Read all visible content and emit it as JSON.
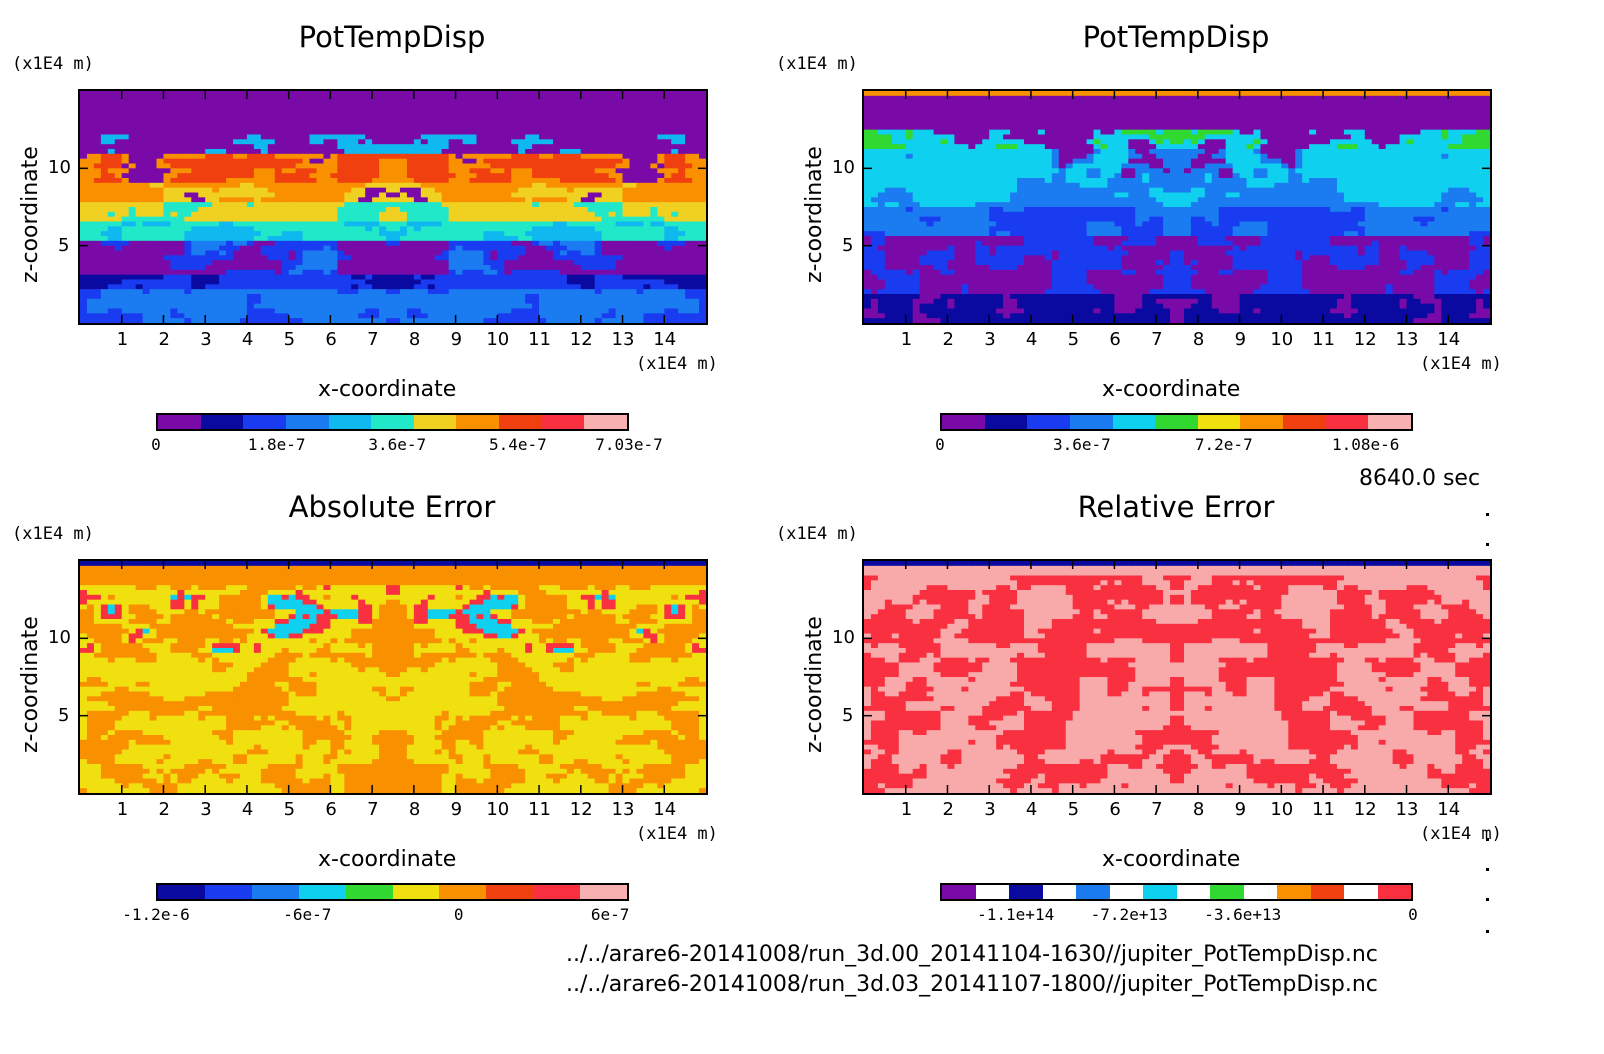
{
  "chart_data": [
    {
      "type": "heatmap",
      "title": "PotTempDisp",
      "xlabel": "x-coordinate",
      "ylabel": "z-coordinate",
      "x_unit": "(x1E4 m)",
      "y_unit": "(x1E4 m)",
      "x_ticks": [
        "1",
        "2",
        "3",
        "4",
        "5",
        "6",
        "7",
        "8",
        "9",
        "10",
        "11",
        "12",
        "13",
        "14"
      ],
      "y_ticks": [
        "5",
        "10"
      ],
      "colorbar": {
        "labels": [
          "0",
          "1.8e-7",
          "3.6e-7",
          "5.4e-7",
          "7.03e-7"
        ],
        "colors": [
          "#7a0aa8",
          "#0a0aa0",
          "#1a3cf0",
          "#1a7cf0",
          "#10b8f0",
          "#20e8c8",
          "#f0d020",
          "#f89000",
          "#f04010",
          "#f83040",
          "#f8b0b0"
        ]
      }
    },
    {
      "type": "heatmap",
      "title": "PotTempDisp",
      "xlabel": "x-coordinate",
      "ylabel": "z-coordinate",
      "x_unit": "(x1E4 m)",
      "y_unit": "(x1E4 m)",
      "x_ticks": [
        "1",
        "2",
        "3",
        "4",
        "5",
        "6",
        "7",
        "8",
        "9",
        "10",
        "11",
        "12",
        "13",
        "14"
      ],
      "y_ticks": [
        "5",
        "10"
      ],
      "colorbar": {
        "labels": [
          "0",
          "3.6e-7",
          "7.2e-7",
          "1.08e-6"
        ],
        "colors": [
          "#7a0aa8",
          "#0a0aa0",
          "#1a3cf0",
          "#1a7cf0",
          "#10d0f0",
          "#30d830",
          "#f0e010",
          "#f89000",
          "#f04010",
          "#f83040",
          "#f8b0b0"
        ]
      }
    },
    {
      "type": "heatmap",
      "title": "Absolute Error",
      "xlabel": "x-coordinate",
      "ylabel": "z-coordinate",
      "x_unit": "(x1E4 m)",
      "y_unit": "(x1E4 m)",
      "x_ticks": [
        "1",
        "2",
        "3",
        "4",
        "5",
        "6",
        "7",
        "8",
        "9",
        "10",
        "11",
        "12",
        "13",
        "14"
      ],
      "y_ticks": [
        "5",
        "10"
      ],
      "colorbar": {
        "labels": [
          "-1.2e-6",
          "-6e-7",
          "0",
          "6e-7"
        ],
        "colors": [
          "#0a0aa0",
          "#1a3cf0",
          "#1a7cf0",
          "#10d0f0",
          "#30d830",
          "#f0e010",
          "#f89000",
          "#f04010",
          "#f83040",
          "#f8b0b0"
        ]
      }
    },
    {
      "type": "heatmap",
      "title": "Relative Error",
      "xlabel": "x-coordinate",
      "ylabel": "z-coordinate",
      "x_unit": "(x1E4 m)",
      "y_unit": "(x1E4 m)",
      "x_ticks": [
        "1",
        "2",
        "3",
        "4",
        "5",
        "6",
        "7",
        "8",
        "9",
        "10",
        "11",
        "12",
        "13",
        "14"
      ],
      "y_ticks": [
        "5",
        "10"
      ],
      "colorbar": {
        "labels": [
          "-1.1e+14",
          "-7.2e+13",
          "-3.6e+13",
          "0"
        ],
        "colors": [
          "#7a0aa8",
          "#ffffff",
          "#0a0aa0",
          "#ffffff",
          "#1a7cf0",
          "#ffffff",
          "#10d0f0",
          "#ffffff",
          "#30d830",
          "#ffffff",
          "#f89000",
          "#f04010",
          "#ffffff",
          "#f83040"
        ]
      }
    }
  ],
  "time_label": "8640.0 sec",
  "file_paths": [
    "../../arare6-20141008/run_3d.00_20141104-1630//jupiter_PotTempDisp.nc",
    "../../arare6-20141008/run_3d.03_20141107-1800//jupiter_PotTempDisp.nc"
  ]
}
